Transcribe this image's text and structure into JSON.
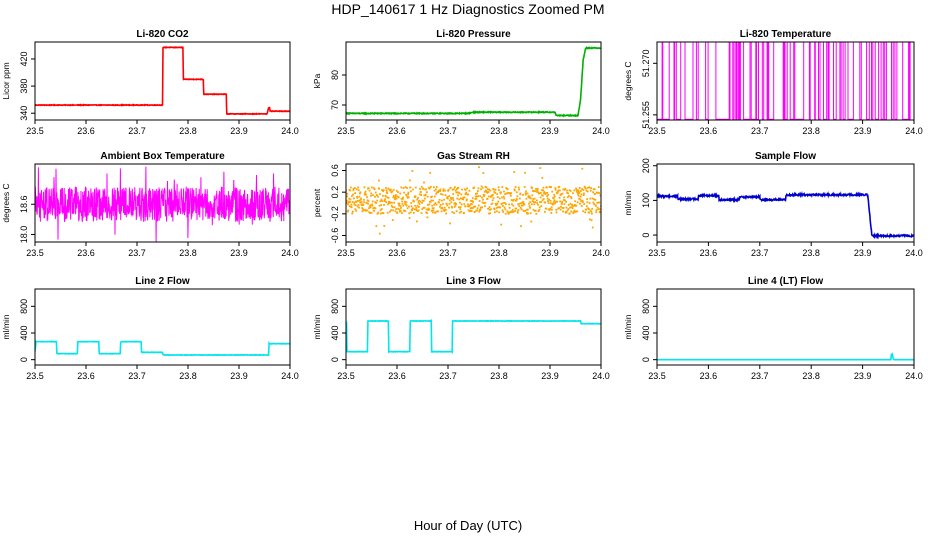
{
  "page": {
    "title": "HDP_140617  1 Hz Diagnostics Zoomed PM",
    "xlabel": "Hour of Day (UTC)"
  },
  "chart_data": [
    {
      "type": "line",
      "title": "Li-820 CO2",
      "ylabel": "Licor ppm",
      "color": "#ff0000",
      "xlim": [
        23.5,
        24.0
      ],
      "ylim": [
        330,
        445
      ],
      "xticks": [
        "23.5",
        "23.6",
        "23.7",
        "23.8",
        "23.9",
        "24.0"
      ],
      "yticks": [
        "340",
        "380",
        "420"
      ],
      "noise": 0.4,
      "x": [
        23.5,
        23.75,
        23.751,
        23.79,
        23.791,
        23.83,
        23.831,
        23.875,
        23.876,
        23.955,
        23.958,
        23.96,
        23.961,
        24.0
      ],
      "y": [
        352,
        352,
        437,
        437,
        390,
        390,
        368,
        368,
        339,
        339,
        348,
        348,
        343,
        343
      ]
    },
    {
      "type": "line",
      "title": "Li-820 Pressure",
      "ylabel": "kPa",
      "color": "#00b000",
      "xlim": [
        23.5,
        24.0
      ],
      "ylim": [
        65,
        91
      ],
      "xticks": [
        "23.5",
        "23.6",
        "23.7",
        "23.8",
        "23.9",
        "24.0"
      ],
      "yticks": [
        "70",
        "80"
      ],
      "noise": 0.15,
      "x": [
        23.5,
        23.74,
        23.75,
        23.91,
        23.912,
        23.955,
        23.96,
        23.965,
        23.97,
        24.0
      ],
      "y": [
        67.2,
        67.2,
        67.6,
        67.6,
        66.5,
        66.5,
        72,
        85,
        89,
        89
      ]
    },
    {
      "type": "line",
      "title": "Li-820 Temperature",
      "ylabel": "degrees C",
      "color": "#ff00ff",
      "style": "toggle",
      "xlim": [
        23.5,
        24.0
      ],
      "ylim": [
        51.2535,
        51.2762
      ],
      "low": 51.2537,
      "high": 51.2762,
      "xticks": [
        "23.5",
        "23.6",
        "23.7",
        "23.8",
        "23.9",
        "24.0"
      ],
      "yticks": [
        "51.255",
        "51.270"
      ]
    },
    {
      "type": "line",
      "title": "Ambient Box Temperature",
      "ylabel": "degrees C",
      "color": "#ff00ff",
      "style": "noise",
      "center": 18.6,
      "amp": 0.35,
      "spike": 0.8,
      "xlim": [
        23.5,
        24.0
      ],
      "ylim": [
        17.85,
        19.4
      ],
      "xticks": [
        "23.5",
        "23.6",
        "23.7",
        "23.8",
        "23.9",
        "24.0"
      ],
      "yticks": [
        "18.0",
        "18.6"
      ]
    },
    {
      "type": "scatter",
      "title": "Gas Stream RH",
      "ylabel": "percent",
      "color": "#ffa500",
      "style": "noise",
      "center": 0.05,
      "amp": 0.25,
      "spike": 0.62,
      "xlim": [
        23.5,
        24.0
      ],
      "ylim": [
        -0.72,
        0.72
      ],
      "xticks": [
        "23.5",
        "23.6",
        "23.7",
        "23.8",
        "23.9",
        "24.0"
      ],
      "yticks": [
        "-0.6",
        "-0.2",
        "0.2",
        "0.6"
      ]
    },
    {
      "type": "line",
      "title": "Sample Flow",
      "ylabel": "ml/min",
      "color": "#0000cc",
      "xlim": [
        23.5,
        24.0
      ],
      "ylim": [
        -20,
        205
      ],
      "xticks": [
        "23.5",
        "23.6",
        "23.7",
        "23.8",
        "23.9",
        "24.0"
      ],
      "yticks": [
        "0",
        "100",
        "200"
      ],
      "noise": 2.5,
      "x": [
        23.5,
        23.54,
        23.541,
        23.58,
        23.581,
        23.62,
        23.621,
        23.66,
        23.661,
        23.7,
        23.701,
        23.75,
        23.751,
        23.91,
        23.918,
        24.0
      ],
      "y": [
        112,
        112,
        104,
        104,
        114,
        114,
        102,
        102,
        110,
        110,
        102,
        102,
        116,
        116,
        -2,
        -2
      ]
    },
    {
      "type": "line",
      "title": "Line 2 Flow",
      "ylabel": "ml/min",
      "color": "#00e5ee",
      "xlim": [
        23.5,
        24.0
      ],
      "ylim": [
        -80,
        1060
      ],
      "xticks": [
        "23.5",
        "23.6",
        "23.7",
        "23.8",
        "23.9",
        "24.0"
      ],
      "yticks": [
        "0",
        "400",
        "800"
      ],
      "noise": 3,
      "x": [
        23.5,
        23.502,
        23.542,
        23.543,
        23.583,
        23.584,
        23.625,
        23.626,
        23.667,
        23.668,
        23.708,
        23.709,
        23.75,
        23.751,
        23.958,
        23.959,
        24.0
      ],
      "y": [
        120,
        270,
        270,
        90,
        90,
        270,
        270,
        90,
        90,
        270,
        270,
        110,
        110,
        70,
        70,
        240,
        240
      ]
    },
    {
      "type": "line",
      "title": "Line 3 Flow",
      "ylabel": "ml/min",
      "color": "#00e5ee",
      "xlim": [
        23.5,
        24.0
      ],
      "ylim": [
        -80,
        1060
      ],
      "xticks": [
        "23.5",
        "23.6",
        "23.7",
        "23.8",
        "23.9",
        "24.0"
      ],
      "yticks": [
        "0",
        "400",
        "800"
      ],
      "noise": 3,
      "x": [
        23.5,
        23.501,
        23.502,
        23.542,
        23.543,
        23.583,
        23.584,
        23.625,
        23.626,
        23.667,
        23.668,
        23.708,
        23.709,
        23.96,
        23.961,
        24.0
      ],
      "y": [
        560,
        560,
        120,
        120,
        580,
        580,
        120,
        120,
        580,
        580,
        120,
        120,
        580,
        580,
        540,
        540
      ]
    },
    {
      "type": "line",
      "title": "Line 4 (LT) Flow",
      "ylabel": "ml/min",
      "color": "#00e5ee",
      "xlim": [
        23.5,
        24.0
      ],
      "ylim": [
        -80,
        1060
      ],
      "xticks": [
        "23.5",
        "23.6",
        "23.7",
        "23.8",
        "23.9",
        "24.0"
      ],
      "yticks": [
        "0",
        "400",
        "800"
      ],
      "noise": 0,
      "x": [
        23.5,
        23.955,
        23.956,
        23.957,
        23.958,
        23.96,
        23.961,
        23.962,
        24.0
      ],
      "y": [
        0,
        0,
        90,
        40,
        70,
        5,
        0,
        0,
        0
      ]
    }
  ]
}
